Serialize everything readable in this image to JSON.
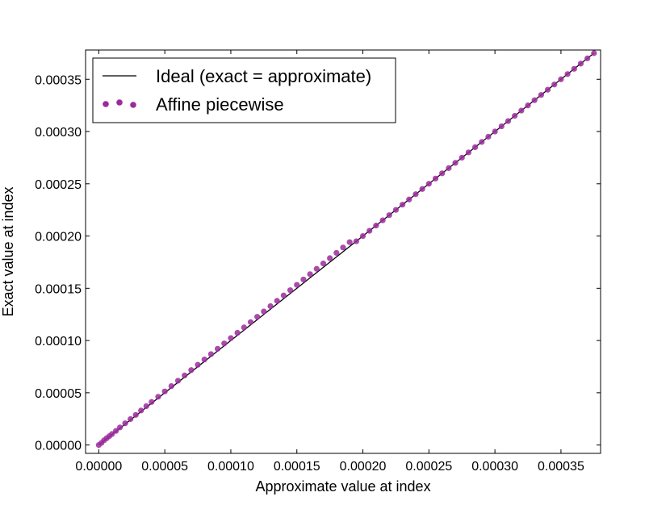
{
  "chart_data": {
    "type": "scatter",
    "title": "",
    "xlabel": "Approximate value at index",
    "ylabel": "Exact value at index",
    "xlim": [
      -1e-05,
      0.00038
    ],
    "ylim": [
      -8e-06,
      0.000378
    ],
    "xticks": [
      0.0,
      5e-05,
      0.0001,
      0.00015,
      0.0002,
      0.00025,
      0.0003,
      0.00035
    ],
    "yticks": [
      0.0,
      5e-05,
      0.0001,
      0.00015,
      0.0002,
      0.00025,
      0.0003,
      0.00035
    ],
    "xtick_labels": [
      "0.00000",
      "0.00005",
      "0.00010",
      "0.00015",
      "0.00020",
      "0.00025",
      "0.00030",
      "0.00035"
    ],
    "ytick_labels": [
      "0.00000",
      "0.00005",
      "0.00010",
      "0.00015",
      "0.00020",
      "0.00025",
      "0.00030",
      "0.00035"
    ],
    "grid": false,
    "legend_position": "top-left",
    "series": [
      {
        "name": "Ideal (exact = approximate)",
        "kind": "line",
        "color": "#000000",
        "x": [
          0.0,
          0.000375
        ],
        "y": [
          0.0,
          0.000375
        ]
      },
      {
        "name": "Affine piecewise",
        "kind": "scatter",
        "color": "#9b2a9b",
        "x": [
          0.0,
          2e-06,
          4e-06,
          6e-06,
          8e-06,
          1e-05,
          1.3e-05,
          1.6e-05,
          2e-05,
          2.4e-05,
          2.8e-05,
          3.2e-05,
          3.6e-05,
          4e-05,
          4.5e-05,
          5e-05,
          5.5e-05,
          6e-05,
          6.5e-05,
          7e-05,
          7.5e-05,
          8e-05,
          8.5e-05,
          9e-05,
          9.5e-05,
          0.0001,
          0.000105,
          0.00011,
          0.000115,
          0.00012,
          0.000125,
          0.00013,
          0.000135,
          0.00014,
          0.000145,
          0.00015,
          0.000155,
          0.00016,
          0.000165,
          0.00017,
          0.000175,
          0.00018,
          0.000185,
          0.00019,
          0.000195,
          0.0002,
          0.000205,
          0.00021,
          0.000215,
          0.00022,
          0.000225,
          0.00023,
          0.000235,
          0.00024,
          0.000245,
          0.00025,
          0.000255,
          0.00026,
          0.000265,
          0.00027,
          0.000275,
          0.00028,
          0.000285,
          0.00029,
          0.000295,
          0.0003,
          0.000305,
          0.00031,
          0.000315,
          0.00032,
          0.000325,
          0.00033,
          0.000335,
          0.00034,
          0.000345,
          0.00035,
          0.000355,
          0.00036,
          0.000365,
          0.00037,
          0.000375
        ],
        "y": [
          0.0,
          2e-06,
          4.5e-06,
          6.5e-06,
          8.5e-06,
          1.05e-05,
          1.35e-05,
          1.68e-05,
          2.08e-05,
          2.48e-05,
          2.88e-05,
          3.3e-05,
          3.72e-05,
          4.12e-05,
          4.62e-05,
          5.13e-05,
          5.64e-05,
          6.15e-05,
          6.66e-05,
          7.17e-05,
          7.68e-05,
          8.19e-05,
          8.7e-05,
          9.21e-05,
          9.72e-05,
          0.0001023,
          0.0001074,
          0.0001125,
          0.0001176,
          0.0001227,
          0.0001278,
          0.0001329,
          0.000138,
          0.0001431,
          0.0001482,
          0.0001533,
          0.0001584,
          0.0001635,
          0.0001686,
          0.0001737,
          0.0001788,
          0.0001839,
          0.000189,
          0.0001941,
          0.000195,
          0.0002,
          0.000205,
          0.00021,
          0.000215,
          0.00022,
          0.000225,
          0.00023,
          0.000235,
          0.00024,
          0.000245,
          0.00025,
          0.000255,
          0.00026,
          0.000265,
          0.00027,
          0.000275,
          0.00028,
          0.000285,
          0.00029,
          0.000295,
          0.0003,
          0.000305,
          0.00031,
          0.000315,
          0.00032,
          0.000325,
          0.00033,
          0.000335,
          0.00034,
          0.000345,
          0.00035,
          0.000355,
          0.00036,
          0.000365,
          0.00037,
          0.000375
        ]
      }
    ]
  }
}
